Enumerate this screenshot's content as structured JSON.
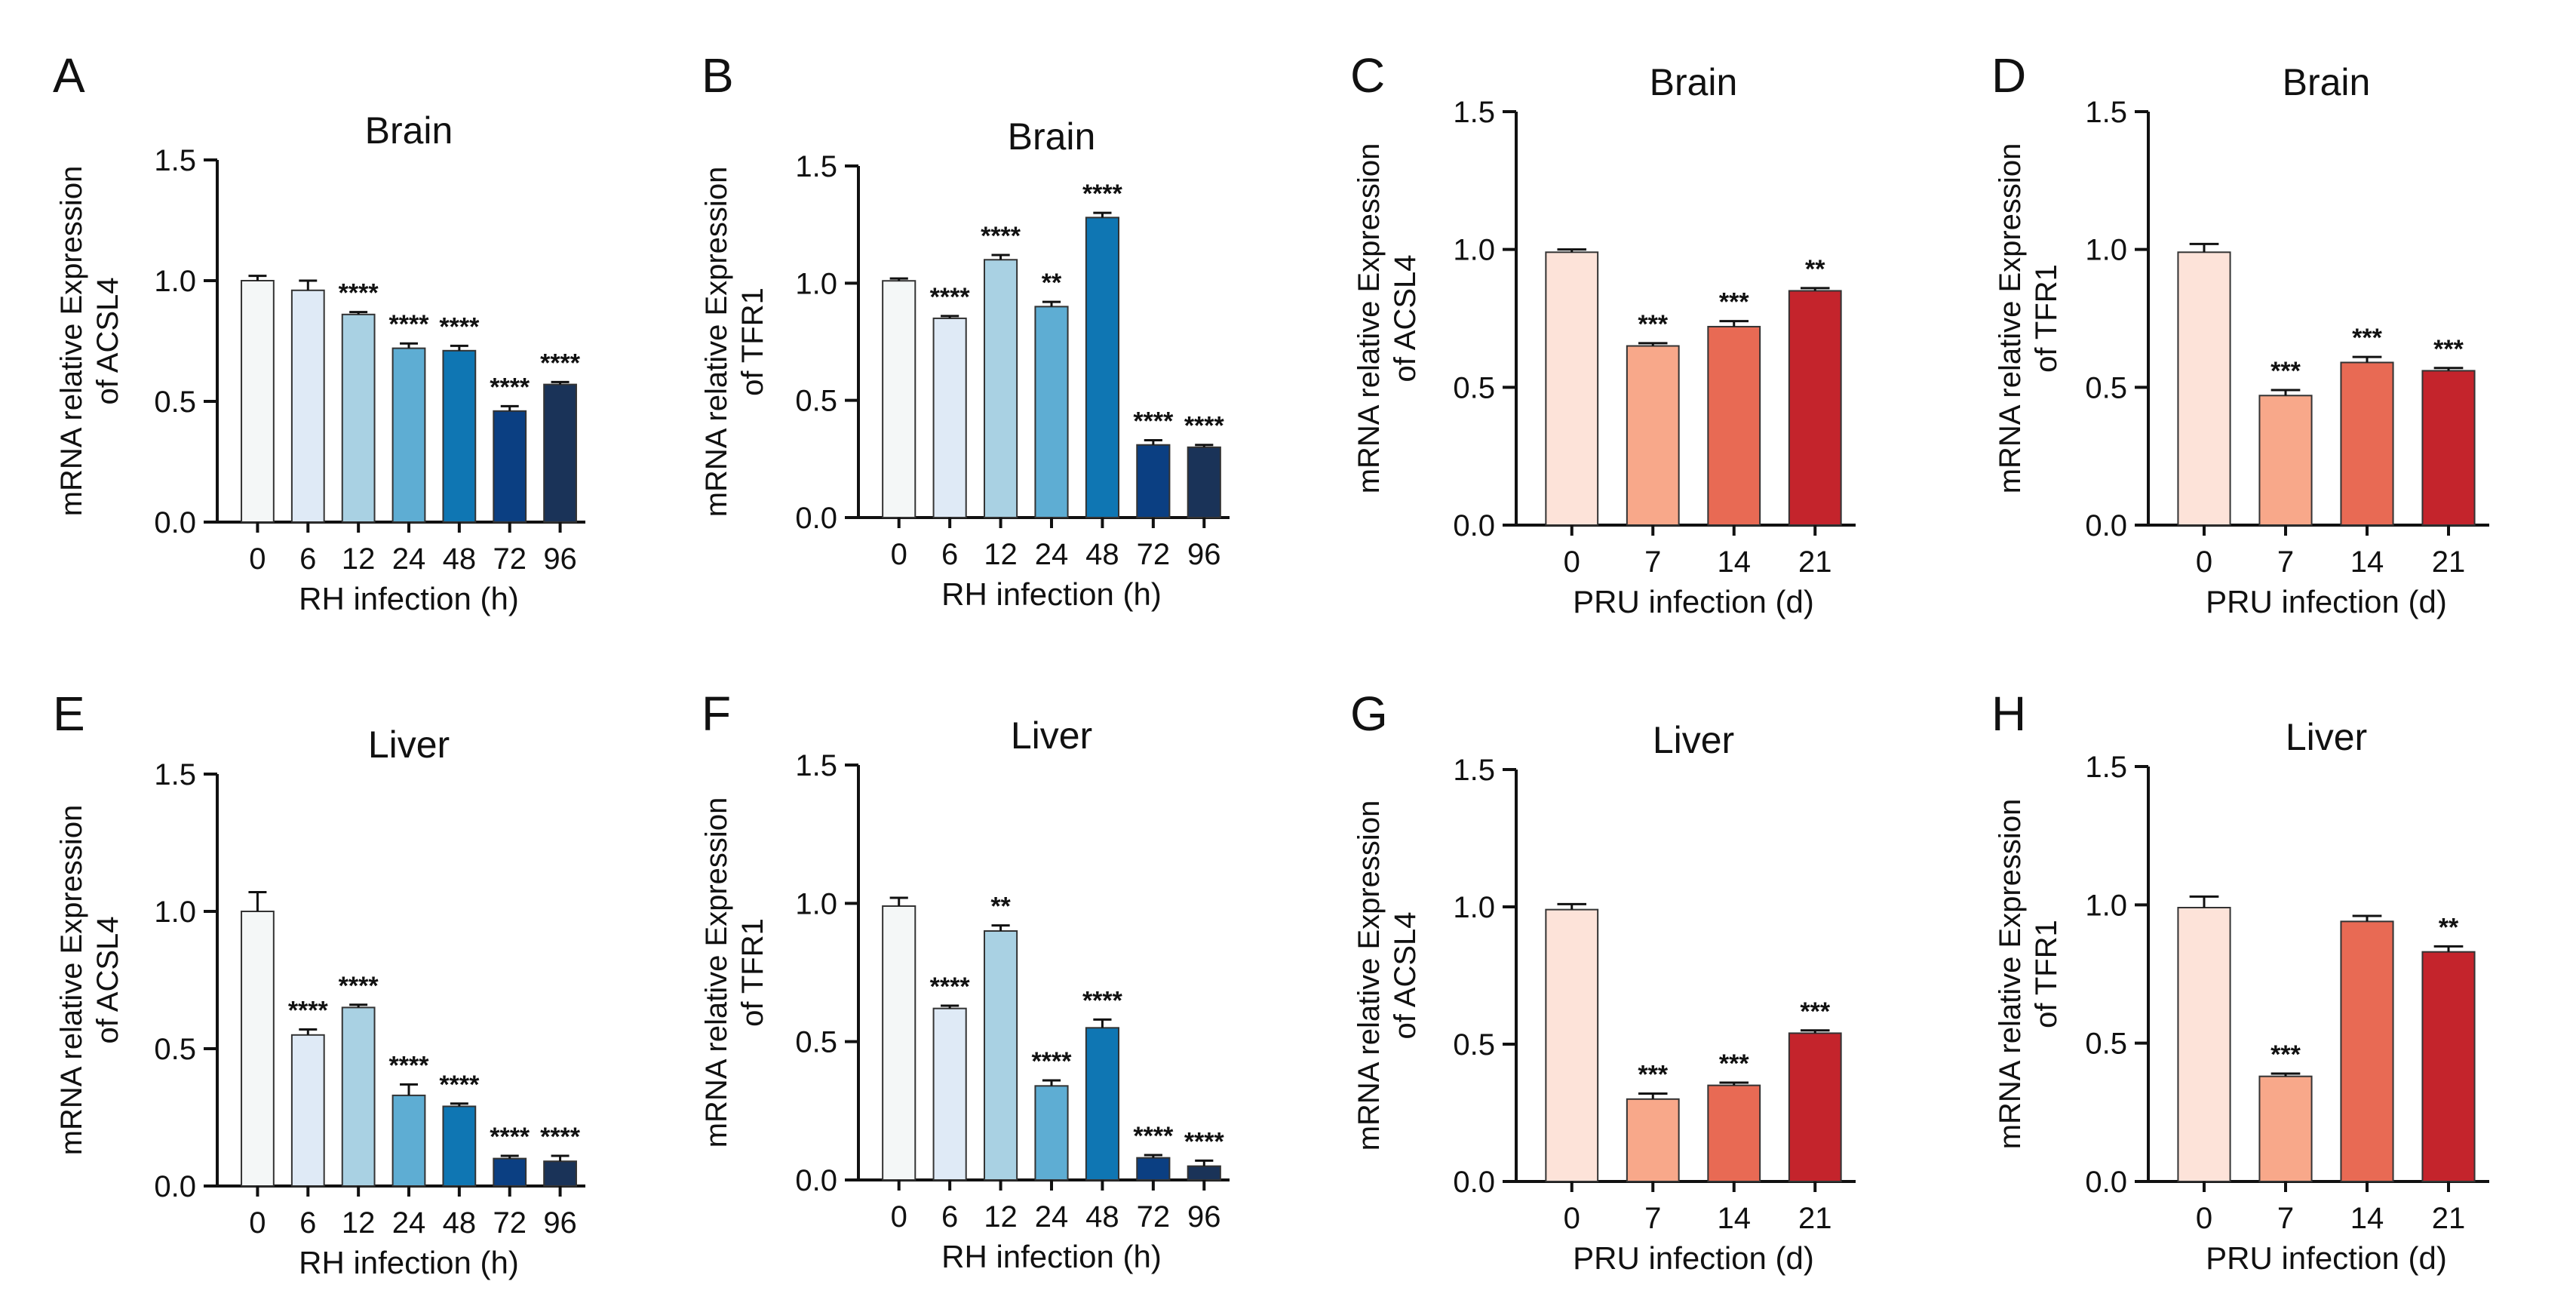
{
  "chart_data": [
    {
      "panel": "A",
      "title": "Brain",
      "type": "bar",
      "ylabel": [
        "mRNA relative Expression",
        "of ACSL4"
      ],
      "xlabel": "RH infection (h)",
      "ylim": [
        0,
        1.5
      ],
      "yticks": [
        "0.0",
        "0.5",
        "1.0",
        "1.5"
      ],
      "categories": [
        "0",
        "6",
        "12",
        "24",
        "48",
        "72",
        "96"
      ],
      "values": [
        1.0,
        0.96,
        0.86,
        0.72,
        0.71,
        0.46,
        0.57
      ],
      "errors": [
        0.02,
        0.04,
        0.01,
        0.02,
        0.02,
        0.02,
        0.01
      ],
      "significance": [
        "",
        "",
        "****",
        "****",
        "****",
        "****",
        "****"
      ],
      "colors": [
        "#f4f7f7",
        "#dfeaf6",
        "#a9d1e3",
        "#5eadd3",
        "#0f76b3",
        "#0b3f82",
        "#1a3358"
      ]
    },
    {
      "panel": "B",
      "title": "Brain",
      "type": "bar",
      "ylabel": [
        "mRNA relative Expression",
        "of TFR1"
      ],
      "xlabel": "RH infection (h)",
      "ylim": [
        0,
        1.5
      ],
      "yticks": [
        "0.0",
        "0.5",
        "1.0",
        "1.5"
      ],
      "categories": [
        "0",
        "6",
        "12",
        "24",
        "48",
        "72",
        "96"
      ],
      "values": [
        1.01,
        0.85,
        1.1,
        0.9,
        1.28,
        0.31,
        0.3
      ],
      "errors": [
        0.01,
        0.01,
        0.02,
        0.02,
        0.02,
        0.02,
        0.01
      ],
      "significance": [
        "",
        "****",
        "****",
        "**",
        "****",
        "****",
        "****"
      ],
      "colors": [
        "#f4f7f7",
        "#dfeaf6",
        "#a9d1e3",
        "#5eadd3",
        "#0f76b3",
        "#0b3f82",
        "#1a3358"
      ]
    },
    {
      "panel": "C",
      "title": "Brain",
      "type": "bar",
      "ylabel": [
        "mRNA relative Expression",
        "of ACSL4"
      ],
      "xlabel": "PRU infection (d)",
      "ylim": [
        0,
        1.5
      ],
      "yticks": [
        "0.0",
        "0.5",
        "1.0",
        "1.5"
      ],
      "categories": [
        "0",
        "7",
        "14",
        "21"
      ],
      "values": [
        0.99,
        0.65,
        0.72,
        0.85
      ],
      "errors": [
        0.01,
        0.01,
        0.02,
        0.01
      ],
      "significance": [
        "",
        "***",
        "***",
        "**"
      ],
      "colors": [
        "#fde3d9",
        "#f8a88a",
        "#e86a54",
        "#c4242c"
      ]
    },
    {
      "panel": "D",
      "title": "Brain",
      "type": "bar",
      "ylabel": [
        "mRNA relative Expression",
        "of TFR1"
      ],
      "xlabel": "PRU infection (d)",
      "ylim": [
        0,
        1.5
      ],
      "yticks": [
        "0.0",
        "0.5",
        "1.0",
        "1.5"
      ],
      "categories": [
        "0",
        "7",
        "14",
        "21"
      ],
      "values": [
        0.99,
        0.47,
        0.59,
        0.56
      ],
      "errors": [
        0.03,
        0.02,
        0.02,
        0.01
      ],
      "significance": [
        "",
        "***",
        "***",
        "***"
      ],
      "colors": [
        "#fde3d9",
        "#f8a88a",
        "#e86a54",
        "#c4242c"
      ]
    },
    {
      "panel": "E",
      "title": "Liver",
      "type": "bar",
      "ylabel": [
        "mRNA relative Expression",
        "of ACSL4"
      ],
      "xlabel": "RH infection (h)",
      "ylim": [
        0,
        1.5
      ],
      "yticks": [
        "0.0",
        "0.5",
        "1.0",
        "1.5"
      ],
      "categories": [
        "0",
        "6",
        "12",
        "24",
        "48",
        "72",
        "96"
      ],
      "values": [
        1.0,
        0.55,
        0.65,
        0.33,
        0.29,
        0.1,
        0.09
      ],
      "errors": [
        0.07,
        0.02,
        0.01,
        0.04,
        0.01,
        0.01,
        0.02
      ],
      "significance": [
        "",
        "****",
        "****",
        "****",
        "****",
        "****",
        "****"
      ],
      "colors": [
        "#f4f7f7",
        "#dfeaf6",
        "#a9d1e3",
        "#5eadd3",
        "#0f76b3",
        "#0b3f82",
        "#1a3358"
      ]
    },
    {
      "panel": "F",
      "title": "Liver",
      "type": "bar",
      "ylabel": [
        "mRNA relative Expression",
        "of TFR1"
      ],
      "xlabel": "RH infection (h)",
      "ylim": [
        0,
        1.5
      ],
      "yticks": [
        "0.0",
        "0.5",
        "1.0",
        "1.5"
      ],
      "categories": [
        "0",
        "6",
        "12",
        "24",
        "48",
        "72",
        "96"
      ],
      "values": [
        0.99,
        0.62,
        0.9,
        0.34,
        0.55,
        0.08,
        0.05
      ],
      "errors": [
        0.03,
        0.01,
        0.02,
        0.02,
        0.03,
        0.01,
        0.02
      ],
      "significance": [
        "",
        "****",
        "**",
        "****",
        "****",
        "****",
        "****"
      ],
      "colors": [
        "#f4f7f7",
        "#dfeaf6",
        "#a9d1e3",
        "#5eadd3",
        "#0f76b3",
        "#0b3f82",
        "#1a3358"
      ]
    },
    {
      "panel": "G",
      "title": "Liver",
      "type": "bar",
      "ylabel": [
        "mRNA relative Expression",
        "of ACSL4"
      ],
      "xlabel": "PRU infection (d)",
      "ylim": [
        0,
        1.5
      ],
      "yticks": [
        "0.0",
        "0.5",
        "1.0",
        "1.5"
      ],
      "categories": [
        "0",
        "7",
        "14",
        "21"
      ],
      "values": [
        0.99,
        0.3,
        0.35,
        0.54
      ],
      "errors": [
        0.02,
        0.02,
        0.01,
        0.01
      ],
      "significance": [
        "",
        "***",
        "***",
        "***"
      ],
      "colors": [
        "#fde3d9",
        "#f8a88a",
        "#e86a54",
        "#c4242c"
      ]
    },
    {
      "panel": "H",
      "title": "Liver",
      "type": "bar",
      "ylabel": [
        "mRNA relative Expression",
        "of TFR1"
      ],
      "xlabel": "PRU infection (d)",
      "ylim": [
        0,
        1.5
      ],
      "yticks": [
        "0.0",
        "0.5",
        "1.0",
        "1.5"
      ],
      "categories": [
        "0",
        "7",
        "14",
        "21"
      ],
      "values": [
        0.99,
        0.38,
        0.94,
        0.83
      ],
      "errors": [
        0.04,
        0.01,
        0.02,
        0.02
      ],
      "significance": [
        "",
        "***",
        "",
        "**"
      ],
      "colors": [
        "#fde3d9",
        "#f8a88a",
        "#e86a54",
        "#c4242c"
      ]
    }
  ]
}
